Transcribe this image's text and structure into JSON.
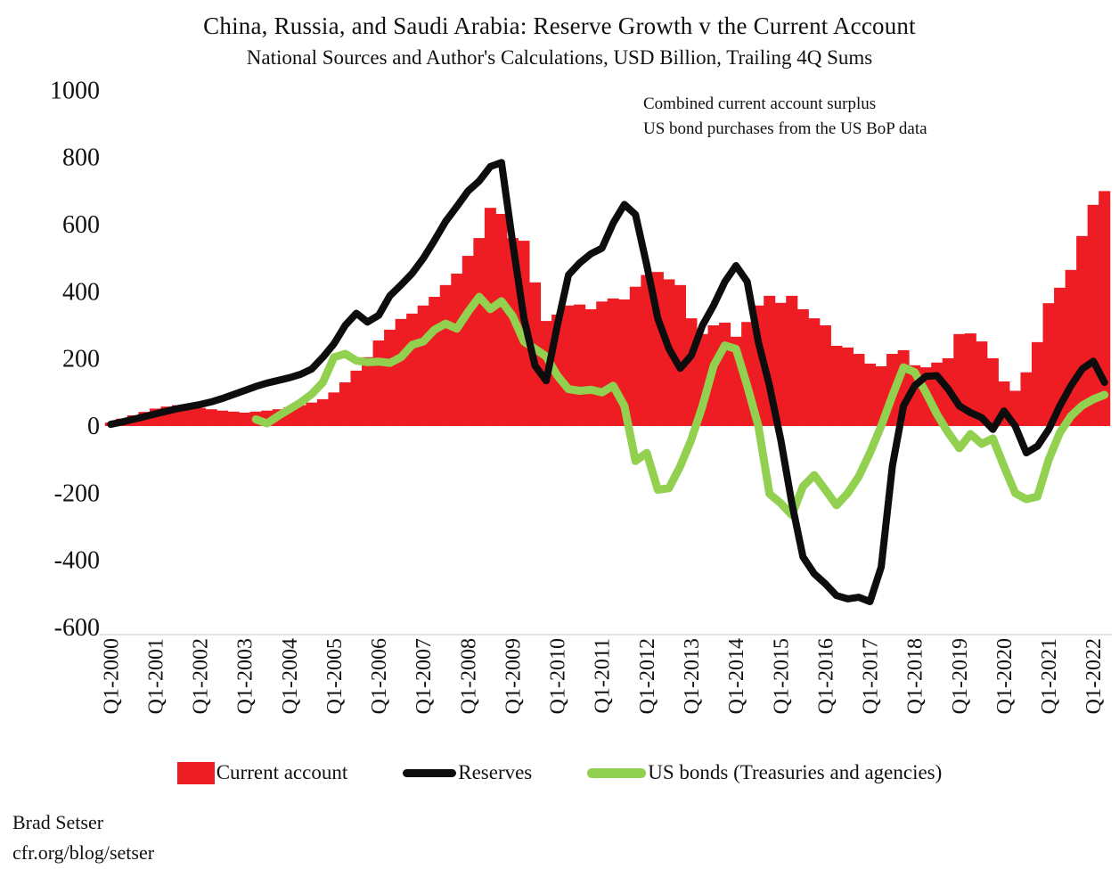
{
  "header": {
    "title": "China, Russia, and Saudi Arabia: Reserve Growth v the Current Account",
    "subtitle": "National Sources and Author's Calculations, USD Billion, Trailing 4Q Sums"
  },
  "annotation": {
    "line1": "Combined current account surplus",
    "line2": "US bond purchases from the US BoP data"
  },
  "legend": {
    "current_account": "Current account",
    "reserves": "Reserves",
    "us_bonds": "US bonds (Treasuries and agencies)"
  },
  "footer": {
    "author": "Brad Setser",
    "source": "cfr.org/blog/setser"
  },
  "colors": {
    "current_account": "#ee1c23",
    "reserves": "#0d0d0d",
    "us_bonds": "#92d050",
    "text": "#111111",
    "background": "#ffffff"
  },
  "chart_data": {
    "type": "bar+line",
    "title": "China, Russia, and Saudi Arabia: Reserve Growth v the Current Account",
    "subtitle": "National Sources and Author's Calculations, USD Billion, Trailing 4Q Sums",
    "x_unit": "quarters",
    "x_start": "Q1-2000",
    "x_end": "Q2-2022",
    "x_tick_labels": [
      "Q1-2000",
      "Q1-2001",
      "Q1-2002",
      "Q1-2003",
      "Q1-2004",
      "Q1-2005",
      "Q1-2006",
      "Q1-2007",
      "Q1-2008",
      "Q1-2009",
      "Q1-2010",
      "Q1-2011",
      "Q1-2012",
      "Q1-2013",
      "Q1-2014",
      "Q1-2015",
      "Q1-2016",
      "Q1-2017",
      "Q1-2018",
      "Q1-2019",
      "Q1-2020",
      "Q1-2021",
      "Q1-2022"
    ],
    "ylim": [
      -600,
      1000
    ],
    "y_ticks": [
      1000,
      800,
      600,
      400,
      200,
      0,
      -200,
      -400,
      -600
    ],
    "grid": false,
    "legend_position": "bottom",
    "series": [
      {
        "name": "Current account",
        "type": "bar",
        "color": "#ee1c23",
        "values": [
          10,
          22,
          32,
          42,
          52,
          58,
          62,
          58,
          54,
          50,
          46,
          43,
          40,
          43,
          46,
          50,
          56,
          62,
          70,
          80,
          100,
          130,
          165,
          205,
          255,
          287,
          319,
          335,
          359,
          385,
          420,
          454,
          507,
          560,
          650,
          632,
          560,
          552,
          428,
          313,
          332,
          359,
          362,
          348,
          371,
          380,
          377,
          415,
          450,
          459,
          437,
          420,
          321,
          274,
          300,
          308,
          266,
          310,
          359,
          388,
          367,
          388,
          348,
          321,
          300,
          239,
          234,
          215,
          186,
          178,
          215,
          226,
          181,
          175,
          189,
          202,
          274,
          276,
          252,
          202,
          133,
          105,
          160,
          250,
          366,
          412,
          465,
          566,
          659,
          700
        ]
      },
      {
        "name": "Reserves",
        "type": "line",
        "color": "#0d0d0d",
        "stroke_width": 8,
        "values": [
          5,
          12,
          20,
          28,
          36,
          44,
          52,
          58,
          64,
          72,
          82,
          94,
          106,
          118,
          128,
          136,
          144,
          154,
          170,
          205,
          245,
          300,
          336,
          310,
          330,
          388,
          420,
          455,
          500,
          553,
          610,
          654,
          700,
          730,
          773,
          785,
          545,
          322,
          180,
          135,
          300,
          450,
          486,
          513,
          530,
          605,
          660,
          630,
          480,
          320,
          230,
          172,
          210,
          300,
          360,
          430,
          478,
          430,
          250,
          120,
          -40,
          -230,
          -390,
          -440,
          -470,
          -505,
          -515,
          -510,
          -523,
          -420,
          -120,
          60,
          120,
          148,
          150,
          110,
          60,
          40,
          25,
          -10,
          45,
          0,
          -80,
          -60,
          -10,
          60,
          120,
          170,
          193,
          130
        ]
      },
      {
        "name": "US bonds (Treasuries and agencies)",
        "type": "line",
        "color": "#92d050",
        "stroke_width": 9,
        "values": [
          null,
          null,
          null,
          null,
          null,
          null,
          null,
          null,
          null,
          null,
          null,
          null,
          null,
          20,
          8,
          30,
          50,
          70,
          95,
          130,
          205,
          215,
          195,
          190,
          192,
          188,
          205,
          242,
          252,
          287,
          305,
          290,
          340,
          385,
          348,
          372,
          327,
          252,
          230,
          207,
          150,
          110,
          105,
          108,
          100,
          120,
          60,
          -104,
          -80,
          -190,
          -185,
          -120,
          -40,
          60,
          180,
          240,
          230,
          120,
          0,
          -202,
          -230,
          -265,
          -180,
          -146,
          -190,
          -236,
          -200,
          -150,
          -80,
          0,
          90,
          175,
          160,
          100,
          35,
          -20,
          -66,
          -24,
          -53,
          -37,
          -120,
          -200,
          -218,
          -210,
          -100,
          -20,
          30,
          61,
          80,
          93
        ]
      }
    ]
  }
}
